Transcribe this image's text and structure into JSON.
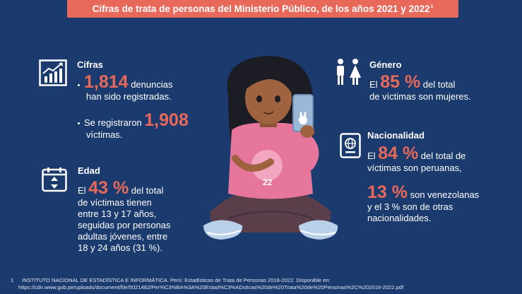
{
  "title": "Cifras de trata de personas del Ministerio Público, de los años 2021 y 2022",
  "title_ref": "1",
  "colors": {
    "background": "#1b3b6f",
    "accent": "#e8685a",
    "text": "#ffffff"
  },
  "cifras": {
    "icon": "bar-chart-growth-icon",
    "heading": "Cifras",
    "item1_number": "1,814",
    "item1_text_a": "denuncias",
    "item1_text_b": "han sido registradas.",
    "item2_text_a": "Se registraron",
    "item2_number": "1,908",
    "item2_text_b": "víctimas."
  },
  "edad": {
    "icon": "calendar-icon",
    "heading": "Edad",
    "prefix": "El",
    "number": "43 %",
    "line1_rest": "del total",
    "line2": "de víctimas tienen",
    "line3": "entre 13 y 17 años,",
    "line4": "seguidas por personas",
    "line5": "adultas jóvenes, entre",
    "line6": "18 y 24 años (31 %)."
  },
  "genero": {
    "icon": "gender-people-icon",
    "heading": "Género",
    "prefix": "El",
    "number": "85 %",
    "line1_rest": "del total",
    "line2": "de víctimas son mujeres."
  },
  "nacionalidad": {
    "icon": "passport-icon",
    "heading": "Nacionalidad",
    "prefix": "El",
    "number": "84 %",
    "line1_rest": "del total de",
    "line2": "víctimas son peruanas,",
    "number2": "13 %",
    "line3_rest": "son venezolanas",
    "line4": "y el 3 % son de otras",
    "line5": "nacionalidades."
  },
  "illustration": {
    "shirt_number": "22"
  },
  "footnote": {
    "number": "1",
    "text": "INSTITUTO NACIONAL DE ESTADÍSTICA E INFORMÁTICA. Perú: Estadísticas de Trata de Personas 2018-2022. Disponible en:",
    "url": "https://cdn.www.gob.pe/uploads/document/file/5021482/Per%C3%BA%3A%20Estad%C3%ADsticas%20de%20Trata%20de%20Personas%2C%202018-2022.pdf"
  }
}
